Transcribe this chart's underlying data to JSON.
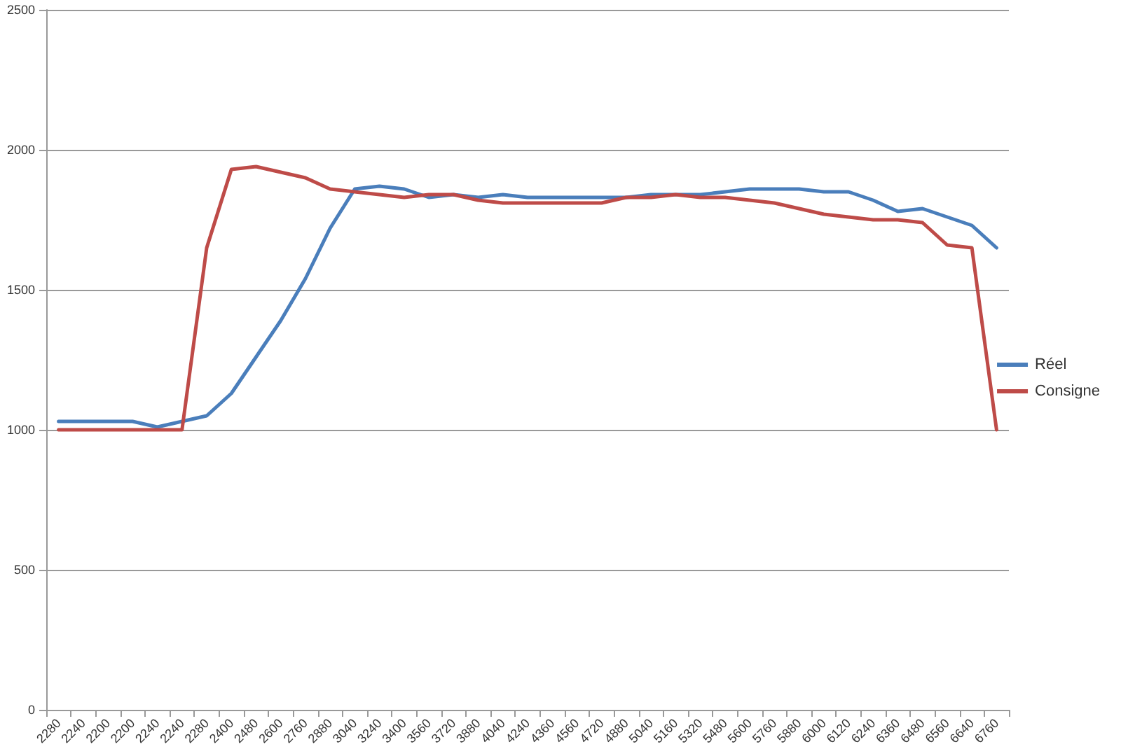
{
  "chart_data": {
    "type": "line",
    "categories": [
      "2280",
      "2240",
      "2200",
      "2200",
      "2240",
      "2240",
      "2280",
      "2400",
      "2480",
      "2600",
      "2760",
      "2880",
      "3040",
      "3240",
      "3400",
      "3560",
      "3720",
      "3880",
      "4040",
      "4240",
      "4360",
      "4560",
      "4720",
      "4880",
      "5040",
      "5160",
      "5320",
      "5480",
      "5600",
      "5760",
      "5880",
      "6000",
      "6120",
      "6240",
      "6360",
      "6480",
      "6560",
      "6640",
      "6760"
    ],
    "series": [
      {
        "name": "Réel",
        "color": "#4a7ebb",
        "values": [
          1030,
          1030,
          1030,
          1030,
          1010,
          1030,
          1050,
          1130,
          1260,
          1390,
          1540,
          1720,
          1860,
          1870,
          1860,
          1830,
          1840,
          1830,
          1840,
          1830,
          1830,
          1830,
          1830,
          1830,
          1840,
          1840,
          1840,
          1850,
          1860,
          1860,
          1860,
          1850,
          1850,
          1820,
          1780,
          1790,
          1760,
          1730,
          1650
        ]
      },
      {
        "name": "Consigne",
        "color": "#be4b48",
        "values": [
          1000,
          1000,
          1000,
          1000,
          1000,
          1000,
          1650,
          1930,
          1940,
          1920,
          1900,
          1860,
          1850,
          1840,
          1830,
          1840,
          1840,
          1820,
          1810,
          1810,
          1810,
          1810,
          1810,
          1830,
          1830,
          1840,
          1830,
          1830,
          1820,
          1810,
          1790,
          1770,
          1760,
          1750,
          1750,
          1740,
          1660,
          1650,
          1000
        ]
      }
    ],
    "ylim": [
      0,
      2500
    ],
    "yticks": [
      0,
      500,
      1000,
      1500,
      2000,
      2500
    ],
    "grid": "y",
    "legend": "right",
    "marker": "none",
    "line_style": "solid"
  }
}
